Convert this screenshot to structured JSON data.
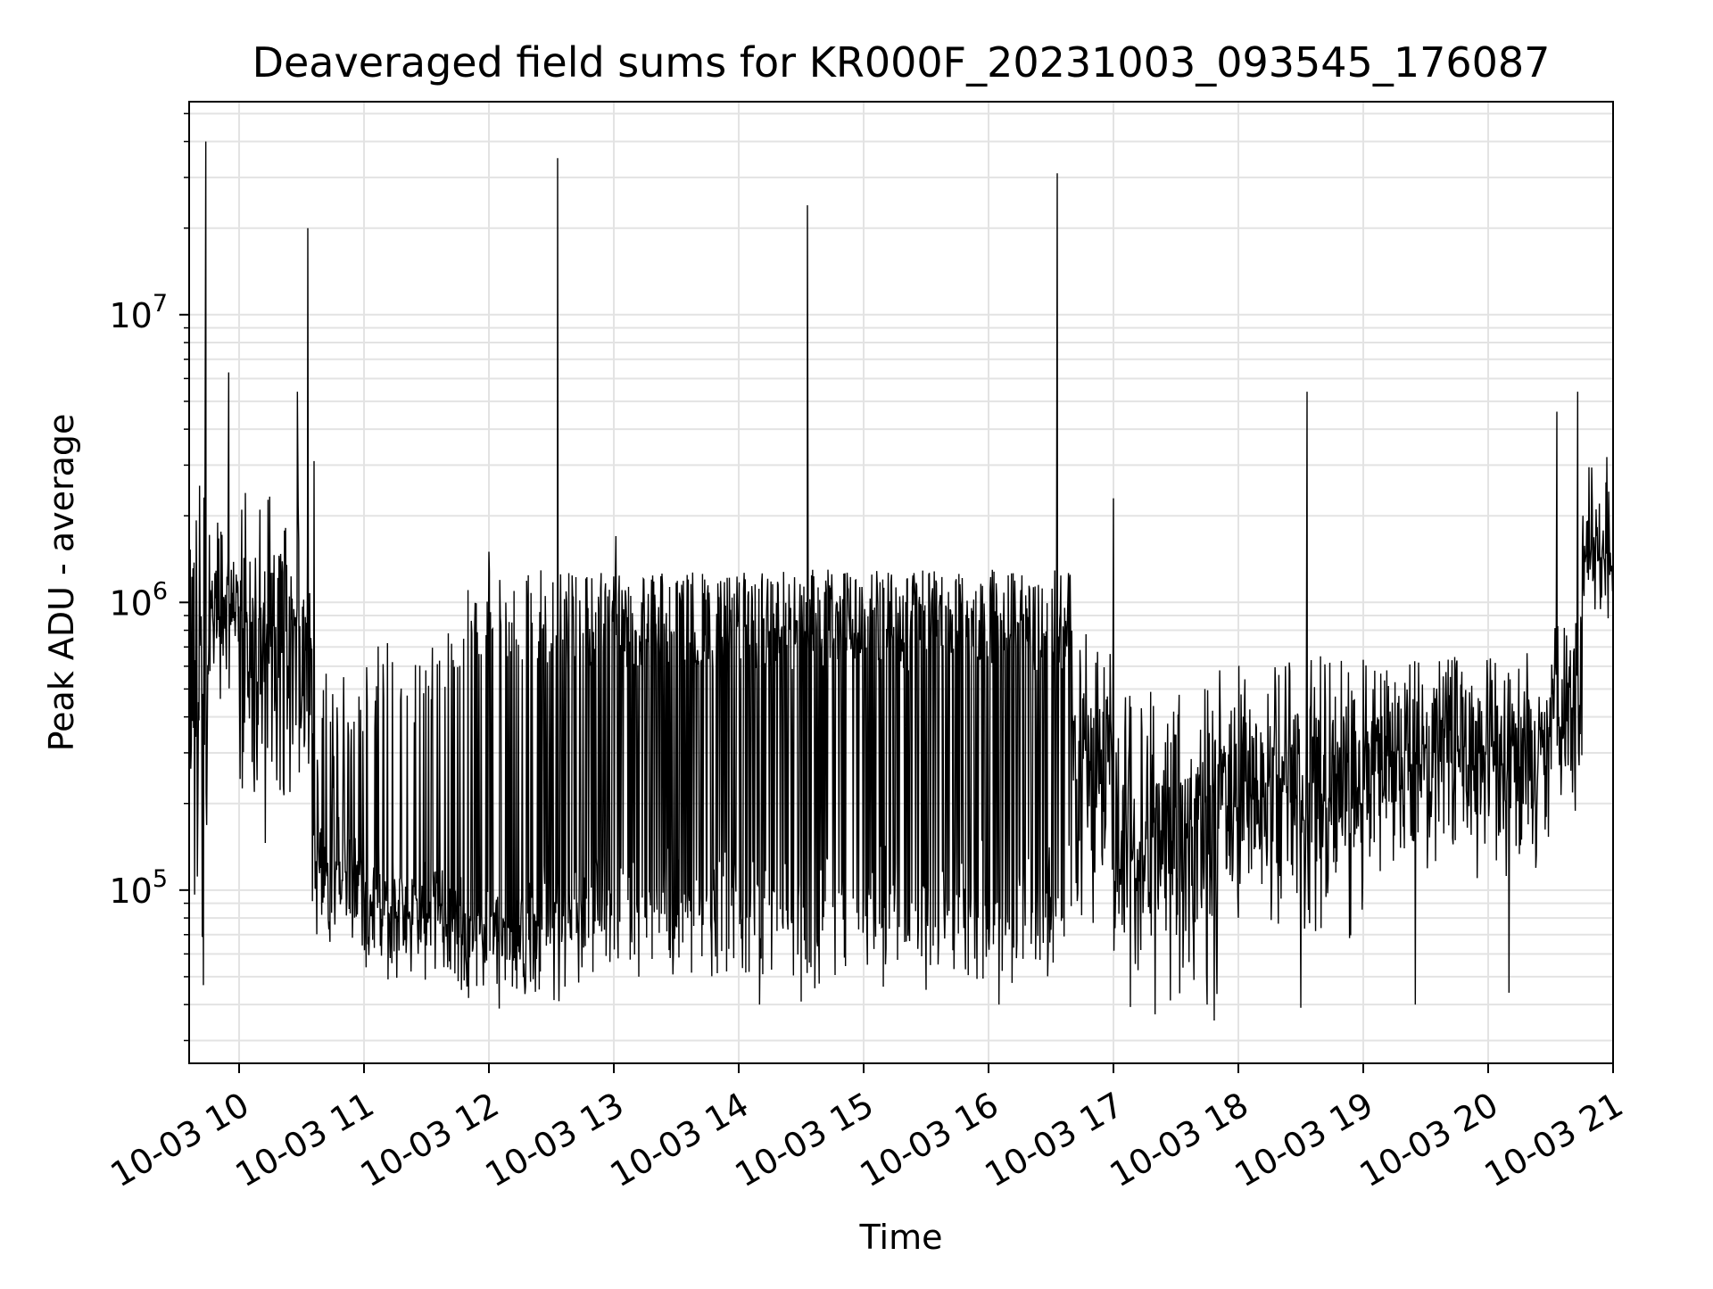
{
  "chart_data": {
    "type": "line",
    "title": "Deaveraged field sums for KR000F_20231003_093545_176087",
    "xlabel": "Time",
    "ylabel": "Peak ADU - average",
    "y_scale": "log",
    "x_start": "2023-10-03T09:36",
    "x_end": "2023-10-03T21:00",
    "ylim": [
      25000,
      55000000
    ],
    "grid": true,
    "line_color": "#000000",
    "x_tick_labels": [
      "10-03 10",
      "10-03 11",
      "10-03 12",
      "10-03 13",
      "10-03 14",
      "10-03 15",
      "10-03 16",
      "10-03 17",
      "10-03 18",
      "10-03 19",
      "10-03 20",
      "10-03 21"
    ],
    "x_tick_times": [
      "2023-10-03T10:00",
      "2023-10-03T11:00",
      "2023-10-03T12:00",
      "2023-10-03T13:00",
      "2023-10-03T14:00",
      "2023-10-03T15:00",
      "2023-10-03T16:00",
      "2023-10-03T17:00",
      "2023-10-03T18:00",
      "2023-10-03T19:00",
      "2023-10-03T20:00",
      "2023-10-03T21:00"
    ],
    "y_tick_labels": [
      {
        "base": "10",
        "exp": "5",
        "value": 100000
      },
      {
        "base": "10",
        "exp": "6",
        "value": 1000000
      },
      {
        "base": "10",
        "exp": "7",
        "value": 10000000
      }
    ],
    "segments": [
      {
        "start": "09:36",
        "end": "09:45",
        "baseline": 500000,
        "spread": 0.55,
        "burst_fraction": 0.1,
        "burst_peak": 1500000
      },
      {
        "start": "09:45",
        "end": "10:00",
        "baseline": 900000,
        "spread": 0.18,
        "burst_fraction": 0.1,
        "burst_peak": 1800000
      },
      {
        "start": "10:00",
        "end": "10:35",
        "baseline": 550000,
        "spread": 0.35,
        "burst_fraction": 0.15,
        "burst_peak": 1500000
      },
      {
        "start": "10:35",
        "end": "11:00",
        "baseline": 110000,
        "spread": 0.2,
        "burst_fraction": 0.25,
        "burst_peak": 600000
      },
      {
        "start": "11:00",
        "end": "11:40",
        "baseline": 80000,
        "spread": 0.14,
        "burst_fraction": 0.15,
        "burst_peak": 800000
      },
      {
        "start": "11:40",
        "end": "12:25",
        "baseline": 70000,
        "spread": 0.14,
        "burst_fraction": 0.3,
        "burst_peak": 1300000
      },
      {
        "start": "12:25",
        "end": "13:00",
        "baseline": 80000,
        "spread": 0.16,
        "burst_fraction": 0.45,
        "burst_peak": 1300000
      },
      {
        "start": "13:00",
        "end": "16:40",
        "baseline": 80000,
        "spread": 0.16,
        "burst_fraction": 0.65,
        "burst_peak": 1300000
      },
      {
        "start": "16:40",
        "end": "17:00",
        "baseline": 220000,
        "spread": 0.25,
        "burst_fraction": 0.3,
        "burst_peak": 800000
      },
      {
        "start": "17:00",
        "end": "17:50",
        "baseline": 110000,
        "spread": 0.28,
        "burst_fraction": 0.2,
        "burst_peak": 500000
      },
      {
        "start": "17:50",
        "end": "19:00",
        "baseline": 180000,
        "spread": 0.26,
        "burst_fraction": 0.22,
        "burst_peak": 650000
      },
      {
        "start": "19:00",
        "end": "20:30",
        "baseline": 260000,
        "spread": 0.22,
        "burst_fraction": 0.22,
        "burst_peak": 650000
      },
      {
        "start": "20:30",
        "end": "20:45",
        "baseline": 350000,
        "spread": 0.2,
        "burst_fraction": 0.25,
        "burst_peak": 900000
      },
      {
        "start": "20:45",
        "end": "21:00",
        "baseline": 1300000,
        "spread": 0.15,
        "burst_fraction": 0.15,
        "burst_peak": 3000000
      }
    ],
    "spikes": [
      {
        "time": "09:44",
        "value": 40000000
      },
      {
        "time": "09:55",
        "value": 6300000
      },
      {
        "time": "10:03",
        "value": 2400000
      },
      {
        "time": "10:10",
        "value": 2100000
      },
      {
        "time": "10:28",
        "value": 5400000
      },
      {
        "time": "10:33",
        "value": 20000000
      },
      {
        "time": "10:36",
        "value": 3100000
      },
      {
        "time": "12:00",
        "value": 1500000
      },
      {
        "time": "12:33",
        "value": 35000000
      },
      {
        "time": "13:01",
        "value": 1700000
      },
      {
        "time": "14:33",
        "value": 24000000
      },
      {
        "time": "16:33",
        "value": 31000000
      },
      {
        "time": "17:00",
        "value": 2300000
      },
      {
        "time": "18:33",
        "value": 5400000
      },
      {
        "time": "20:33",
        "value": 4600000
      },
      {
        "time": "20:43",
        "value": 5400000
      },
      {
        "time": "20:57",
        "value": 3200000
      }
    ],
    "dips": [
      {
        "time": "12:20",
        "value": 48000
      },
      {
        "time": "13:12",
        "value": 50000
      },
      {
        "time": "14:10",
        "value": 40000
      },
      {
        "time": "14:30",
        "value": 41000
      },
      {
        "time": "15:30",
        "value": 45000
      },
      {
        "time": "16:05",
        "value": 40000
      },
      {
        "time": "17:20",
        "value": 37000
      },
      {
        "time": "17:45",
        "value": 40000
      },
      {
        "time": "18:30",
        "value": 39000
      },
      {
        "time": "19:25",
        "value": 40000
      },
      {
        "time": "20:10",
        "value": 44000
      }
    ]
  }
}
